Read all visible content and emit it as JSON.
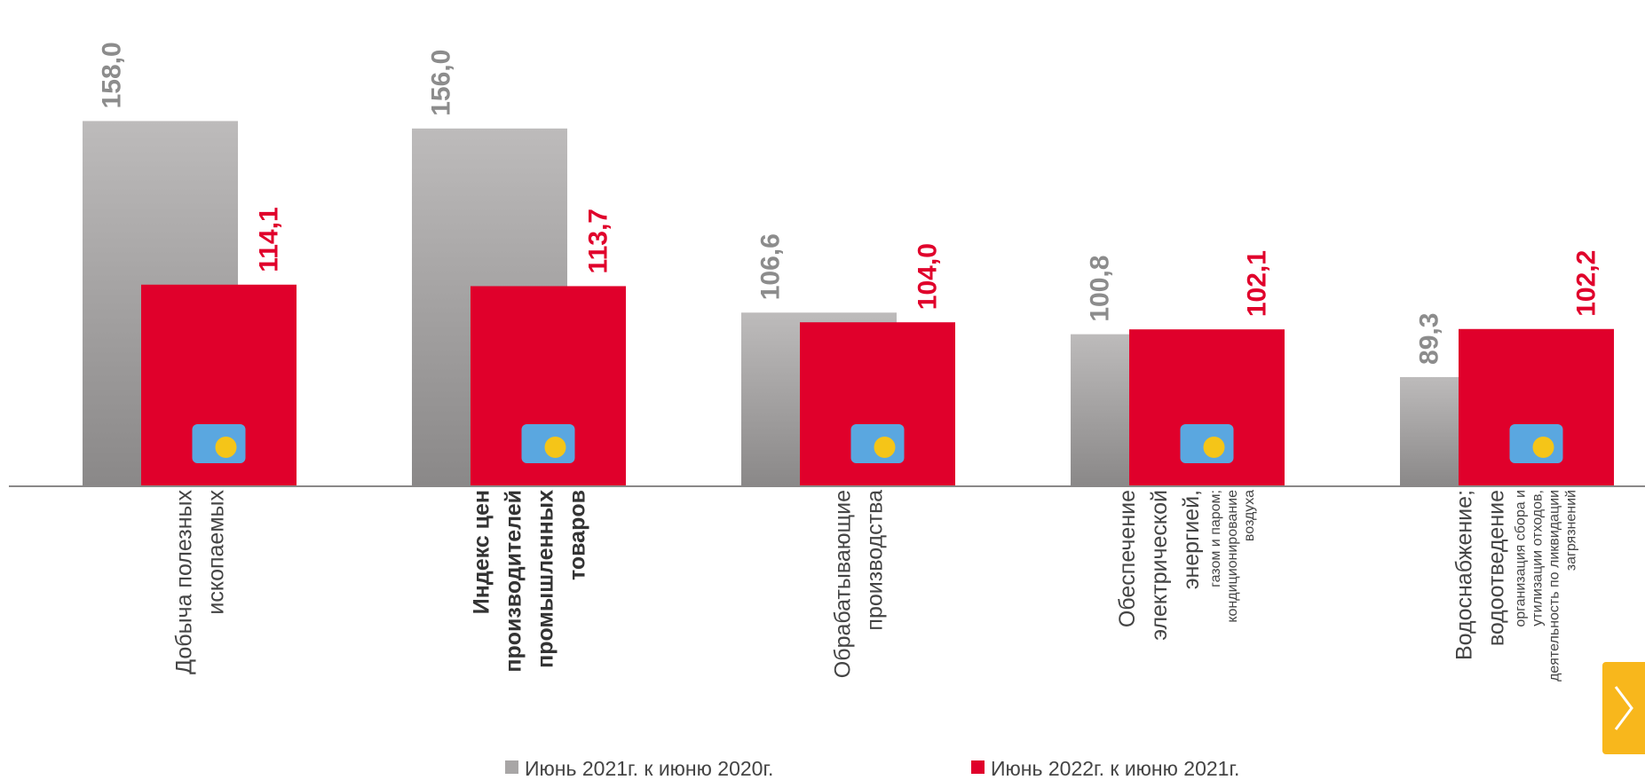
{
  "chart_data": {
    "type": "bar",
    "categories": [
      {
        "lines": [
          "Добыча полезных",
          "ископаемых"
        ]
      },
      {
        "lines": [
          "Индекс цен",
          "производителей",
          "промышленных",
          "товаров"
        ],
        "emphasis": true
      },
      {
        "lines": [
          "Обрабатывающие",
          "производства"
        ]
      },
      {
        "lines": [
          "Обеспечение",
          "электрической",
          "энергией,"
        ],
        "notes": [
          "газом и паром;",
          "кондиционирование",
          "воздуха"
        ]
      },
      {
        "lines": [
          "Водоснабжение;",
          "водоотведение"
        ],
        "notes": [
          "организация сбора и",
          "утилизации отходов,",
          "деятельность по ликвидации",
          "загрязнений"
        ]
      }
    ],
    "series": [
      {
        "name": "Июнь 2021г. к июню 2020г.",
        "color": "#a8a6a6",
        "values": [
          158.0,
          156.0,
          106.6,
          100.8,
          89.3
        ],
        "value_labels": [
          "158,0",
          "156,0",
          "106,6",
          "100,8",
          "89,3"
        ],
        "label_color": "#8c8c8c"
      },
      {
        "name": "Июнь 2022г. к июню 2021г.",
        "color": "#e0002b",
        "values": [
          114.1,
          113.7,
          104.0,
          102.1,
          102.2
        ],
        "value_labels": [
          "114,1",
          "113,7",
          "104,0",
          "102,1",
          "102,2"
        ],
        "label_color": "#e0002b"
      }
    ],
    "ylim": [
      60,
      160
    ],
    "legend": "bottom"
  }
}
